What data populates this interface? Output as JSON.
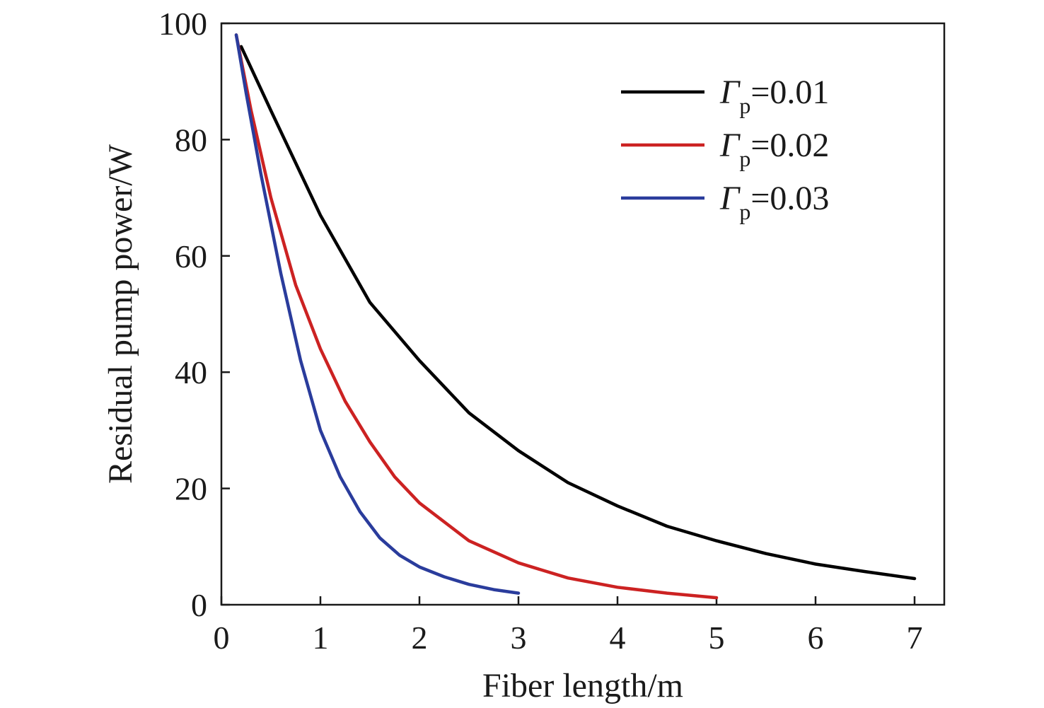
{
  "chart_data": {
    "type": "line",
    "xlabel": "Fiber length/m",
    "ylabel": "Residual pump power/W",
    "xlim": [
      0,
      7.3
    ],
    "ylim": [
      0,
      100
    ],
    "xticks": [
      0,
      1,
      2,
      3,
      4,
      5,
      6,
      7
    ],
    "yticks": [
      0,
      20,
      40,
      60,
      80,
      100
    ],
    "legend_position": "top-right",
    "legend": {
      "symbol": "Γ",
      "subscript": "p"
    },
    "series": [
      {
        "name": "Γp=0.01",
        "value_text": "=0.01",
        "color": "#000000",
        "x": [
          0.2,
          0.5,
          1.0,
          1.5,
          2.0,
          2.5,
          3.0,
          3.5,
          4.0,
          4.5,
          5.0,
          5.5,
          6.0,
          6.5,
          7.0
        ],
        "y": [
          96,
          85,
          67,
          52,
          42,
          33,
          26.5,
          21,
          17,
          13.5,
          11,
          8.8,
          7,
          5.7,
          4.5
        ]
      },
      {
        "name": "Γp=0.02",
        "value_text": "=0.02",
        "color": "#cc2222",
        "x": [
          0.15,
          0.3,
          0.5,
          0.75,
          1.0,
          1.25,
          1.5,
          1.75,
          2.0,
          2.5,
          3.0,
          3.5,
          4.0,
          4.5,
          5.0
        ],
        "y": [
          98,
          85,
          70,
          55,
          44,
          35,
          28,
          22,
          17.5,
          11,
          7.2,
          4.6,
          3,
          2,
          1.2
        ]
      },
      {
        "name": "Γp=0.03",
        "value_text": "=0.03",
        "color": "#2a3c9c",
        "x": [
          0.15,
          0.25,
          0.4,
          0.6,
          0.8,
          1.0,
          1.2,
          1.4,
          1.6,
          1.8,
          2.0,
          2.25,
          2.5,
          2.75,
          3.0
        ],
        "y": [
          98,
          88,
          74,
          57,
          42,
          30,
          22,
          16,
          11.5,
          8.5,
          6.5,
          4.8,
          3.5,
          2.6,
          2
        ]
      }
    ]
  }
}
